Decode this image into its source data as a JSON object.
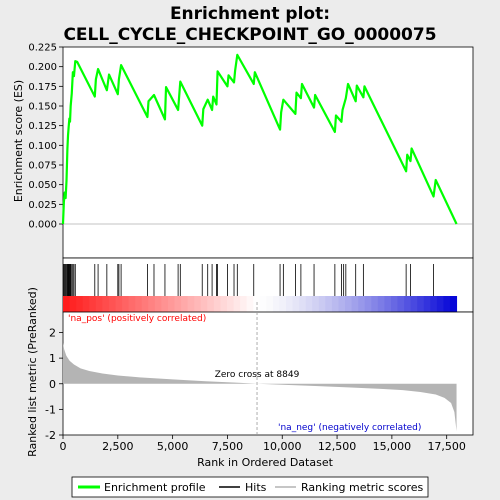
{
  "chart_data": {
    "type": "line",
    "title_line1": "Enrichment plot:",
    "title_line2": "CELL_CYCLE_CHECKPOINT_GO_0000075",
    "top_panel": {
      "ylabel": "Enrichment score (ES)",
      "ylim": [
        0,
        0.225
      ],
      "yticks": [
        0.0,
        0.025,
        0.05,
        0.075,
        0.1,
        0.125,
        0.15,
        0.175,
        0.2,
        0.225
      ],
      "ytick_labels": [
        "0.000",
        "0.025",
        "0.050",
        "0.075",
        "0.100",
        "0.125",
        "0.150",
        "0.175",
        "0.200",
        "0.225"
      ],
      "series": [
        {
          "name": "Enrichment profile",
          "color": "#00ff00",
          "x": [
            0,
            40,
            80,
            120,
            160,
            200,
            230,
            260,
            290,
            320,
            350,
            400,
            450,
            500,
            560,
            650,
            1450,
            1500,
            1600,
            2000,
            2100,
            2500,
            2550,
            2650,
            3850,
            3900,
            4150,
            4650,
            4700,
            5250,
            5300,
            5350,
            6350,
            6400,
            6600,
            6800,
            6850,
            7000,
            7050,
            7500,
            7550,
            7800,
            7850,
            7950,
            8700,
            8750,
            9900,
            9950,
            10050,
            10600,
            10650,
            10850,
            10900,
            11450,
            11500,
            12400,
            12450,
            12700,
            12750,
            12900,
            13000,
            13350,
            13400,
            13700,
            13750,
            15650,
            15700,
            15850,
            15900,
            16900,
            17000,
            17950
          ],
          "y": [
            0.0,
            0.028,
            0.04,
            0.033,
            0.055,
            0.095,
            0.113,
            0.124,
            0.134,
            0.13,
            0.15,
            0.166,
            0.193,
            0.188,
            0.207,
            0.206,
            0.162,
            0.184,
            0.197,
            0.17,
            0.19,
            0.165,
            0.184,
            0.202,
            0.136,
            0.156,
            0.164,
            0.133,
            0.174,
            0.145,
            0.163,
            0.181,
            0.125,
            0.146,
            0.158,
            0.145,
            0.162,
            0.152,
            0.194,
            0.175,
            0.189,
            0.18,
            0.195,
            0.215,
            0.178,
            0.193,
            0.12,
            0.142,
            0.158,
            0.14,
            0.167,
            0.16,
            0.178,
            0.148,
            0.164,
            0.117,
            0.138,
            0.13,
            0.145,
            0.16,
            0.178,
            0.156,
            0.176,
            0.161,
            0.175,
            0.067,
            0.088,
            0.08,
            0.096,
            0.035,
            0.056,
            0.0
          ]
        }
      ]
    },
    "hits": [
      40,
      80,
      120,
      160,
      200,
      230,
      260,
      290,
      320,
      350,
      400,
      450,
      500,
      560,
      1450,
      1600,
      2000,
      2500,
      2550,
      2650,
      3850,
      4150,
      4650,
      5250,
      5350,
      6350,
      6600,
      6800,
      7000,
      7050,
      7500,
      7800,
      7950,
      8700,
      9900,
      10050,
      10600,
      10850,
      11450,
      12400,
      12700,
      12800,
      12900,
      13350,
      13700,
      15650,
      15850,
      16900
    ],
    "bottom_panel": {
      "ylabel": "Ranked list metric (PreRanked)",
      "xlabel": "Rank in Ordered Dataset",
      "xlim": [
        0,
        18700
      ],
      "ylim": [
        -2,
        2.8
      ],
      "yticks": [
        -2,
        -1,
        0,
        1,
        2
      ],
      "ytick_labels": [
        "-2",
        "-1",
        "0",
        "1",
        "2"
      ],
      "xticks": [
        0,
        2500,
        5000,
        7500,
        10000,
        12500,
        15000,
        17500
      ],
      "xtick_labels": [
        "0",
        "2,500",
        "5,000",
        "7,500",
        "10,000",
        "12,500",
        "15,000",
        "17,500"
      ],
      "metric_x": [
        0,
        50,
        150,
        300,
        500,
        800,
        1200,
        1800,
        2500,
        3500,
        5000,
        6500,
        8000,
        8849,
        10000,
        11500,
        13000,
        14500,
        15500,
        16300,
        17000,
        17400,
        17700,
        17850,
        17950
      ],
      "metric_y": [
        1.6,
        1.35,
        1.1,
        0.9,
        0.75,
        0.6,
        0.5,
        0.4,
        0.32,
        0.25,
        0.17,
        0.1,
        0.04,
        0.0,
        -0.04,
        -0.09,
        -0.14,
        -0.2,
        -0.25,
        -0.32,
        -0.42,
        -0.55,
        -0.75,
        -1.1,
        -1.85
      ],
      "zero_cross_label": "Zero cross at 8849",
      "zero_cross": 8849,
      "pos_label": "'na_pos' (positively correlated)",
      "neg_label": "'na_neg' (negatively correlated)"
    },
    "legend": {
      "items": [
        "Enrichment profile",
        "Hits",
        "Ranking metric scores"
      ]
    },
    "colors": {
      "profile": "#00ff00",
      "hits": "#000000",
      "metric_fill": "#b4b4b4",
      "pos_text": "#ff0000",
      "neg_text": "#0000cd",
      "zero_line": "#999999"
    }
  }
}
